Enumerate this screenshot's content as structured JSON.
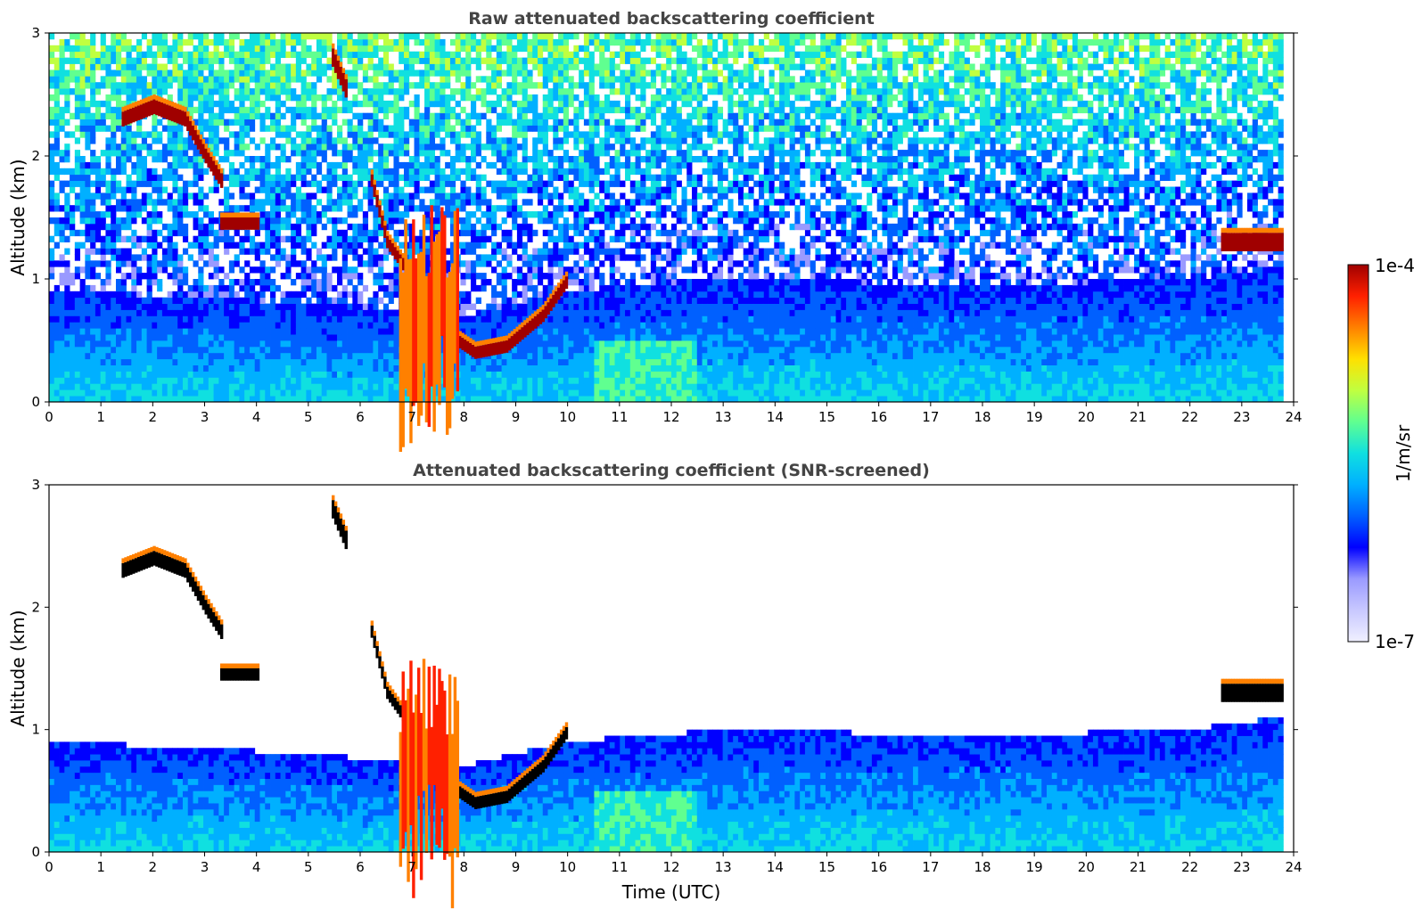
{
  "chart_data": [
    {
      "type": "heatmap",
      "title": "Raw attenuated backscattering coefficient",
      "xlabel": "",
      "ylabel": "Altitude (km)",
      "xlim": [
        0,
        24
      ],
      "ylim": [
        0,
        3
      ],
      "x_ticks": [
        0,
        1,
        2,
        3,
        4,
        5,
        6,
        7,
        8,
        9,
        10,
        11,
        12,
        13,
        14,
        15,
        16,
        17,
        18,
        19,
        20,
        21,
        22,
        23,
        24
      ],
      "y_ticks": [
        0,
        1,
        2,
        3
      ],
      "data_end_hour": 23.8,
      "colorscale": "jet",
      "features": {
        "cloud_layers": [
          {
            "x": [
              1.4,
              2.0,
              2.6,
              3.0,
              3.3
            ],
            "y": [
              2.3,
              2.4,
              2.3,
              2.0,
              1.8
            ],
            "layer_km": 0.12
          },
          {
            "x": [
              3.3,
              4.0
            ],
            "y": [
              1.45,
              1.45
            ],
            "layer_km": 0.1
          },
          {
            "x": [
              5.45,
              5.7
            ],
            "y": [
              2.8,
              2.55
            ],
            "layer_km": 0.15
          },
          {
            "x": [
              6.2,
              6.5,
              7.0,
              7.5,
              8.2,
              8.8,
              9.5,
              10.0
            ],
            "y": [
              1.8,
              1.3,
              1.0,
              0.6,
              0.4,
              0.45,
              0.7,
              1.0
            ],
            "layer_km": 0.1
          },
          {
            "x": [
              22.6,
              23.8
            ],
            "y": [
              1.3,
              1.3
            ],
            "layer_km": 0.15
          }
        ],
        "precip_shafts": [
          {
            "x0": 6.75,
            "x1": 7.85,
            "top_km": 1.6
          }
        ],
        "boundary_layer_top_km": [
          {
            "x": 0,
            "y": 0.9
          },
          {
            "x": 3,
            "y": 0.85
          },
          {
            "x": 5,
            "y": 0.8
          },
          {
            "x": 8,
            "y": 0.7
          },
          {
            "x": 10,
            "y": 0.9
          },
          {
            "x": 13,
            "y": 1.0
          },
          {
            "x": 18,
            "y": 0.95
          },
          {
            "x": 22,
            "y": 1.0
          },
          {
            "x": 23.8,
            "y": 1.1
          }
        ]
      }
    },
    {
      "type": "heatmap",
      "title": "Attenuated backscattering coefficient (SNR-screened)",
      "xlabel": "Time (UTC)",
      "ylabel": "Altitude (km)",
      "xlim": [
        0,
        24
      ],
      "ylim": [
        0,
        3
      ],
      "x_ticks": [
        0,
        1,
        2,
        3,
        4,
        5,
        6,
        7,
        8,
        9,
        10,
        11,
        12,
        13,
        14,
        15,
        16,
        17,
        18,
        19,
        20,
        21,
        22,
        23,
        24
      ],
      "y_ticks": [
        0,
        1,
        2,
        3
      ],
      "data_end_hour": 23.8,
      "colorscale": "jet",
      "screened": true
    }
  ],
  "colorbar": {
    "label": "1/m/sr",
    "max_label": "1e-4",
    "min_label": "1e-7",
    "colors": [
      "#f0f0ff",
      "#c8c8ff",
      "#9a9aff",
      "#0000ff",
      "#0060ff",
      "#00b0ff",
      "#10e0e0",
      "#60ff90",
      "#c0ff40",
      "#ffe000",
      "#ff8000",
      "#ff2000",
      "#a00000"
    ]
  }
}
